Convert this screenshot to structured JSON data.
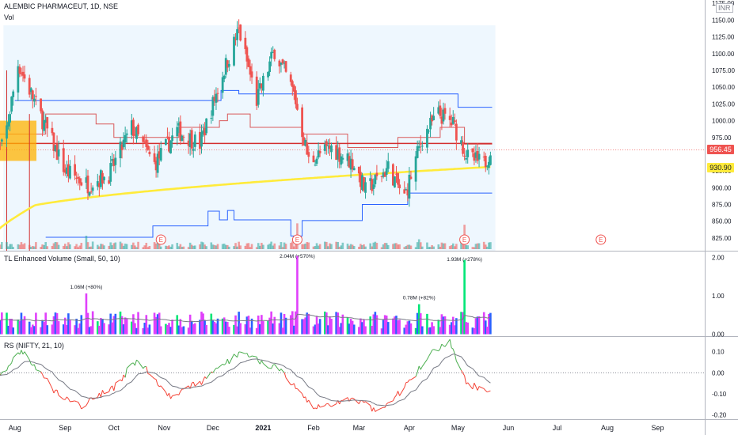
{
  "header": {
    "symbol": "ALEMBIC PHARMACEUT, 1D, NSE",
    "volume_label": "Vol",
    "currency": "INR"
  },
  "price_tags": {
    "last": "956.45",
    "ma": "930.90"
  },
  "panes": {
    "volume_title": "TL Enhanced Volume (Small, 50, 10)",
    "rs_title": "RS (NIFTY, 21, 10)"
  },
  "colors": {
    "up": "#26a69a",
    "down": "#ef5350",
    "ma200": "#ffeb3b",
    "blue_level": "#2962ff",
    "red_level": "#d32f2f",
    "vol_magenta": "#e040fb",
    "vol_blue": "#2962ff",
    "vol_green": "#00e676",
    "rs_line_up": "#4caf50",
    "rs_line_down": "#f44336",
    "rs_ma": "#787b86",
    "orange_block": "#ffb300",
    "shade": "#e3f2fd",
    "last_tag": "#ef5350",
    "ma_tag": "#ffeb3b"
  },
  "chart_data": [
    {
      "type": "candlestick",
      "x_tick_labels": [
        "Aug",
        "Sep",
        "Oct",
        "Nov",
        "Dec",
        "2021",
        "Feb",
        "Mar",
        "Apr",
        "May",
        "Jun",
        "Jul",
        "Aug",
        "Sep"
      ],
      "y_tick_labels": [
        "825.00",
        "850.00",
        "875.00",
        "900.00",
        "925.00",
        "975.00",
        "1000.00",
        "1025.00",
        "1050.00",
        "1075.00",
        "1100.00",
        "1125.00",
        "1150.00",
        "1175.00"
      ],
      "ylim": [
        806,
        1180
      ],
      "last_price": 956.45,
      "ma_value": 930.9,
      "earnings_markers": [
        "E",
        "E",
        "E",
        "E"
      ],
      "key_closes": [
        {
          "date": "2020-07-25",
          "close": 960
        },
        {
          "date": "2020-08-03",
          "close": 1085
        },
        {
          "date": "2020-08-20",
          "close": 990
        },
        {
          "date": "2020-09-01",
          "close": 925
        },
        {
          "date": "2020-09-15",
          "close": 905
        },
        {
          "date": "2020-09-28",
          "close": 920
        },
        {
          "date": "2020-10-12",
          "close": 990
        },
        {
          "date": "2020-10-26",
          "close": 935
        },
        {
          "date": "2020-11-09",
          "close": 985
        },
        {
          "date": "2020-11-23",
          "close": 965
        },
        {
          "date": "2020-12-07",
          "close": 1070
        },
        {
          "date": "2020-12-17",
          "close": 1135
        },
        {
          "date": "2020-12-28",
          "close": 1030
        },
        {
          "date": "2021-01-08",
          "close": 1105
        },
        {
          "date": "2021-01-20",
          "close": 1040
        },
        {
          "date": "2021-01-29",
          "close": 940
        },
        {
          "date": "2021-02-12",
          "close": 960
        },
        {
          "date": "2021-02-26",
          "close": 935
        },
        {
          "date": "2021-03-05",
          "close": 895
        },
        {
          "date": "2021-03-19",
          "close": 930
        },
        {
          "date": "2021-03-29",
          "close": 885
        },
        {
          "date": "2021-04-09",
          "close": 975
        },
        {
          "date": "2021-04-19",
          "close": 1010
        },
        {
          "date": "2021-04-28",
          "close": 995
        },
        {
          "date": "2021-05-07",
          "close": 945
        },
        {
          "date": "2021-05-17",
          "close": 935
        },
        {
          "date": "2021-05-21",
          "close": 956.45
        }
      ]
    },
    {
      "type": "bar",
      "name": "TL Enhanced Volume (Small, 50, 10)",
      "y_tick_labels": [
        "0.00",
        "1.00",
        "2.00"
      ],
      "ylim": [
        -0.05,
        2.15
      ],
      "annotations": [
        "1.06M (+80%)",
        "2.04M (+570%)",
        "0.78M (+82%)",
        "1.93M (+278%)"
      ],
      "spikes": [
        {
          "label": "1.06M (+80%)",
          "value": 1.06
        },
        {
          "label": "2.04M (+570%)",
          "value": 2.04
        },
        {
          "label": "0.78M (+82%)",
          "value": 0.78
        },
        {
          "label": "1.93M (+278%)",
          "value": 1.93
        }
      ]
    },
    {
      "type": "line",
      "name": "RS (NIFTY, 21, 10)",
      "y_tick_labels": [
        "0.10",
        "0.00",
        "-0.10",
        "-0.20"
      ],
      "ylim": [
        -0.22,
        0.17
      ],
      "key_values": [
        {
          "date": "2020-07-25",
          "rs": 0.0
        },
        {
          "date": "2020-08-05",
          "rs": 0.11
        },
        {
          "date": "2020-08-25",
          "rs": -0.08
        },
        {
          "date": "2020-09-10",
          "rs": -0.16
        },
        {
          "date": "2020-10-01",
          "rs": -0.07
        },
        {
          "date": "2020-10-15",
          "rs": 0.06
        },
        {
          "date": "2020-11-05",
          "rs": -0.11
        },
        {
          "date": "2020-11-25",
          "rs": -0.04
        },
        {
          "date": "2020-12-18",
          "rs": 0.1
        },
        {
          "date": "2021-01-10",
          "rs": 0.02
        },
        {
          "date": "2021-02-01",
          "rs": -0.17
        },
        {
          "date": "2021-02-25",
          "rs": -0.12
        },
        {
          "date": "2021-03-12",
          "rs": -0.18
        },
        {
          "date": "2021-03-28",
          "rs": -0.08
        },
        {
          "date": "2021-04-15",
          "rs": 0.09
        },
        {
          "date": "2021-04-26",
          "rs": 0.15
        },
        {
          "date": "2021-05-06",
          "rs": -0.05
        },
        {
          "date": "2021-05-21",
          "rs": -0.09
        }
      ]
    }
  ]
}
